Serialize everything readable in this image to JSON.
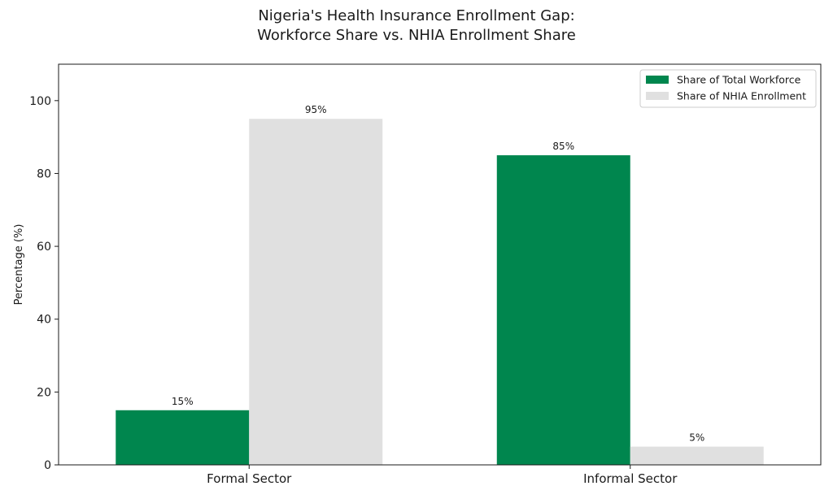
{
  "chart_data": {
    "type": "bar",
    "title_line1": "Nigeria's Health Insurance Enrollment Gap:",
    "title_line2": "Workforce Share vs. NHIA Enrollment Share",
    "xlabel": "",
    "ylabel": "Percentage (%)",
    "categories": [
      "Formal Sector",
      "Informal Sector"
    ],
    "series": [
      {
        "name": "Share of Total Workforce",
        "values": [
          15,
          85
        ],
        "color": "#00864e",
        "labels": [
          "15%",
          "85%"
        ]
      },
      {
        "name": "Share of NHIA Enrollment",
        "values": [
          95,
          5
        ],
        "color": "#e0e0e0",
        "labels": [
          "95%",
          "5%"
        ]
      }
    ],
    "ylim": [
      0,
      110
    ],
    "yticks": [
      0,
      20,
      40,
      60,
      80,
      100
    ],
    "grid": false,
    "legend_position": "top-right"
  }
}
